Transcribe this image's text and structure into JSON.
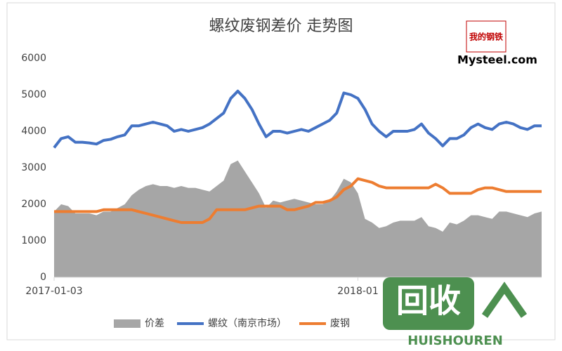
{
  "chart_data": {
    "type": "line",
    "title": "螺纹废钢差价 走势图",
    "categories": [
      "2017-01-03",
      null,
      null,
      null,
      null,
      null,
      null,
      null,
      null,
      null,
      null,
      null,
      null,
      null,
      null,
      null,
      null,
      null,
      null,
      null,
      null,
      null,
      null,
      null,
      null,
      null,
      null,
      null,
      null,
      null,
      null,
      null,
      null,
      null,
      null,
      null,
      null,
      null,
      null,
      null,
      null,
      null,
      null,
      "2018-01",
      null,
      null,
      null,
      null,
      null,
      null,
      null,
      null,
      null,
      null,
      null,
      null,
      null,
      null,
      null,
      null,
      null,
      null,
      null,
      null,
      null,
      null,
      null,
      null,
      null,
      null
    ],
    "series": [
      {
        "name": "价差",
        "type": "area",
        "color": "#a6a6a6",
        "values": [
          1800,
          2000,
          1950,
          1750,
          1750,
          1750,
          1700,
          1800,
          1800,
          1900,
          2000,
          2250,
          2400,
          2500,
          2550,
          2500,
          2500,
          2450,
          2500,
          2450,
          2450,
          2400,
          2350,
          2500,
          2650,
          3100,
          3200,
          2900,
          2600,
          2300,
          1900,
          2100,
          2050,
          2100,
          2150,
          2100,
          2050,
          2000,
          2000,
          2100,
          2350,
          2700,
          2600,
          2300,
          1600,
          1500,
          1350,
          1400,
          1500,
          1550,
          1550,
          1550,
          1650,
          1400,
          1350,
          1250,
          1500,
          1450,
          1550,
          1700,
          1700,
          1650,
          1600,
          1800,
          1800,
          1750,
          1700,
          1650,
          1750,
          1800
        ]
      },
      {
        "name": "螺纹（南京市场）",
        "type": "line",
        "color": "#4472c4",
        "values": [
          3550,
          3800,
          3850,
          3700,
          3700,
          3680,
          3650,
          3750,
          3780,
          3850,
          3900,
          4150,
          4150,
          4200,
          4250,
          4200,
          4150,
          4000,
          4050,
          4000,
          4050,
          4100,
          4200,
          4350,
          4500,
          4900,
          5100,
          4900,
          4600,
          4200,
          3850,
          4000,
          4000,
          3950,
          4000,
          4050,
          4000,
          4100,
          4200,
          4300,
          4500,
          5050,
          5000,
          4900,
          4600,
          4200,
          4000,
          3850,
          4000,
          4000,
          4000,
          4050,
          4200,
          3950,
          3800,
          3600,
          3800,
          3800,
          3900,
          4100,
          4200,
          4100,
          4050,
          4200,
          4250,
          4200,
          4100,
          4050,
          4150,
          4150
        ]
      },
      {
        "name": "废钢",
        "type": "line",
        "color": "#ed7d31",
        "values": [
          1800,
          1800,
          1800,
          1800,
          1800,
          1800,
          1800,
          1850,
          1850,
          1850,
          1850,
          1850,
          1800,
          1750,
          1700,
          1650,
          1600,
          1550,
          1500,
          1500,
          1500,
          1500,
          1600,
          1850,
          1850,
          1850,
          1850,
          1850,
          1900,
          1950,
          1950,
          1950,
          1950,
          1850,
          1850,
          1900,
          1950,
          2050,
          2050,
          2100,
          2200,
          2400,
          2500,
          2700,
          2650,
          2600,
          2500,
          2450,
          2450,
          2450,
          2450,
          2450,
          2450,
          2450,
          2550,
          2450,
          2300,
          2300,
          2300,
          2300,
          2400,
          2450,
          2450,
          2400,
          2350,
          2350,
          2350,
          2350,
          2350,
          2350
        ]
      }
    ],
    "ylim": [
      0,
      6000
    ],
    "yticks": [
      0,
      1000,
      2000,
      3000,
      4000,
      5000,
      6000
    ],
    "grid": false,
    "legend": "bottom"
  },
  "logo": {
    "badge": "我的钢铁",
    "text": "Mysteel.com"
  },
  "watermark": {
    "icon": "回收",
    "text": "HUISHOUREN"
  }
}
